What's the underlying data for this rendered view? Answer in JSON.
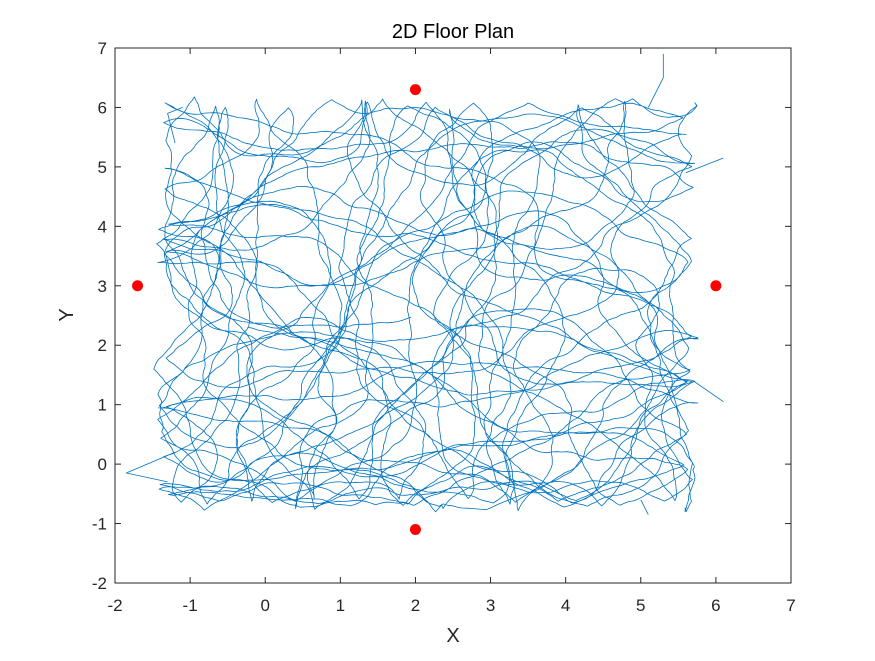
{
  "chart_data": {
    "type": "line",
    "title": "2D Floor Plan",
    "xlabel": "X",
    "ylabel": "Y",
    "xlim": [
      -2,
      7
    ],
    "ylim": [
      -2,
      7
    ],
    "xticks": [
      -2,
      -1,
      0,
      1,
      2,
      3,
      4,
      5,
      6,
      7
    ],
    "yticks": [
      -2,
      -1,
      0,
      1,
      2,
      3,
      4,
      5,
      6,
      7
    ],
    "xtick_labels": [
      "-2",
      "-1",
      "0",
      "1",
      "2",
      "3",
      "4",
      "5",
      "6",
      "7"
    ],
    "ytick_labels": [
      "-2",
      "-1",
      "0",
      "1",
      "2",
      "3",
      "4",
      "5",
      "6",
      "7"
    ],
    "grid": false,
    "legend": "none",
    "trajectory": {
      "color": "#0072BD",
      "description_shape": "dense random-walk path filling the rectangle",
      "x_range": [
        -1.85,
        6.1
      ],
      "y_range": [
        -0.85,
        6.9
      ],
      "core_x_range": [
        -1.3,
        5.6
      ],
      "core_y_range": [
        -0.6,
        6.0
      ]
    },
    "anchors": {
      "color": "#FF0000",
      "points": [
        {
          "x": 2,
          "y": 6.3
        },
        {
          "x": -1.7,
          "y": 3
        },
        {
          "x": 6,
          "y": 3
        },
        {
          "x": 2,
          "y": -1.1
        }
      ]
    }
  }
}
